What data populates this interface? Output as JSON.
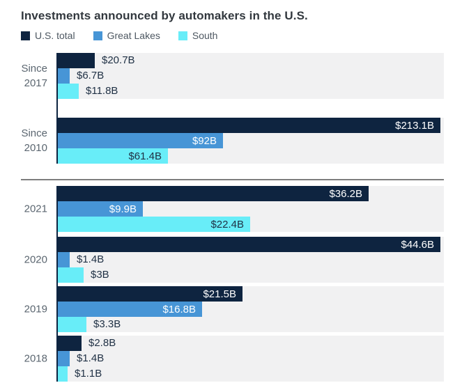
{
  "title": "Investments announced by automakers in the U.S.",
  "colors": {
    "us_total": "#0e2440",
    "great_lakes": "#4795d6",
    "south": "#68edf8",
    "band": "#f1f1f2",
    "divider": "#7d7d7d",
    "axis_line": "#0e2440",
    "title_text": "#32383e",
    "category_text": "#5b6670",
    "value_text_dark": "#1f3044",
    "value_text_light": "#ffffff"
  },
  "legend": [
    {
      "label": "U.S. total",
      "color_key": "us_total"
    },
    {
      "label": "Great Lakes",
      "color_key": "great_lakes"
    },
    {
      "label": "South",
      "color_key": "south"
    }
  ],
  "chart_data": {
    "type": "bar",
    "orientation": "horizontal",
    "unit": "billions of U.S. dollars",
    "title": "Investments announced by automakers in the U.S.",
    "series_names": [
      "U.S. total",
      "Great Lakes",
      "South"
    ],
    "grid": false,
    "legend_position": "top",
    "sections": [
      {
        "scale_max": 213.1,
        "groups": [
          {
            "category": "Since 2017",
            "category_lines": [
              "Since",
              "2017"
            ],
            "values": [
              20.7,
              6.7,
              11.8
            ],
            "labels": [
              "$20.7B",
              "$6.7B",
              "$11.8B"
            ],
            "label_inside": [
              false,
              false,
              false
            ]
          },
          {
            "category": "Since 2010",
            "category_lines": [
              "Since",
              "2010"
            ],
            "values": [
              213.1,
              92,
              61.4
            ],
            "labels": [
              "$213.1B",
              "$92B",
              "$61.4B"
            ],
            "label_inside": [
              true,
              true,
              true
            ]
          }
        ]
      },
      {
        "scale_max": 44.6,
        "groups": [
          {
            "category": "2021",
            "category_lines": [
              "2021"
            ],
            "values": [
              36.2,
              9.9,
              22.4
            ],
            "labels": [
              "$36.2B",
              "$9.9B",
              "$22.4B"
            ],
            "label_inside": [
              true,
              true,
              true
            ]
          },
          {
            "category": "2020",
            "category_lines": [
              "2020"
            ],
            "values": [
              44.6,
              1.4,
              3
            ],
            "labels": [
              "$44.6B",
              "$1.4B",
              "$3B"
            ],
            "label_inside": [
              true,
              false,
              false
            ]
          },
          {
            "category": "2019",
            "category_lines": [
              "2019"
            ],
            "values": [
              21.5,
              16.8,
              3.3
            ],
            "labels": [
              "$21.5B",
              "$16.8B",
              "$3.3B"
            ],
            "label_inside": [
              true,
              true,
              false
            ]
          },
          {
            "category": "2018",
            "category_lines": [
              "2018"
            ],
            "values": [
              2.8,
              1.4,
              1.1
            ],
            "labels": [
              "$2.8B",
              "$1.4B",
              "$1.1B"
            ],
            "label_inside": [
              false,
              false,
              false
            ]
          }
        ]
      }
    ]
  }
}
